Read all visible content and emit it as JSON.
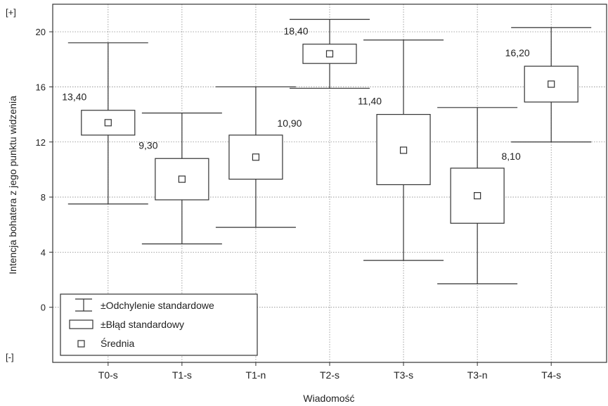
{
  "chart_data": {
    "type": "box",
    "xlabel": "Wiadomość",
    "ylabel": "Intencja bohatera z jego punktu widzenia",
    "ylim": [
      -4,
      22
    ],
    "yticks": [
      0,
      4,
      8,
      12,
      16,
      20
    ],
    "ytick_labels": [
      "0",
      "4",
      "8",
      "12",
      "16",
      "20"
    ],
    "y_top_marker": "[+]",
    "y_bottom_marker": "[-]",
    "grid": true,
    "legend_position": "bottom-left",
    "categories": [
      "T0-s",
      "T1-s",
      "T1-n",
      "T2-s",
      "T3-s",
      "T3-n",
      "T4-s"
    ],
    "mean": [
      13.4,
      9.3,
      10.9,
      18.4,
      11.4,
      8.1,
      16.2
    ],
    "mean_labels": [
      "13,40",
      "9,30",
      "10,90",
      "18,40",
      "11,40",
      "8,10",
      "16,20"
    ],
    "se_low": [
      12.5,
      7.8,
      9.3,
      17.7,
      8.9,
      6.1,
      14.9
    ],
    "se_high": [
      14.3,
      10.8,
      12.5,
      19.1,
      14.0,
      10.1,
      17.5
    ],
    "sd_low": [
      7.5,
      4.6,
      5.8,
      15.9,
      3.4,
      1.7,
      12.0
    ],
    "sd_high": [
      19.2,
      14.1,
      16.0,
      20.9,
      19.4,
      14.5,
      20.3
    ],
    "legend": [
      {
        "label": "±Odchylenie standardowe",
        "icon": "whisker-icon"
      },
      {
        "label": "±Błąd standardowy",
        "icon": "box-icon"
      },
      {
        "label": "Średnia",
        "icon": "mean-square-icon"
      }
    ]
  }
}
